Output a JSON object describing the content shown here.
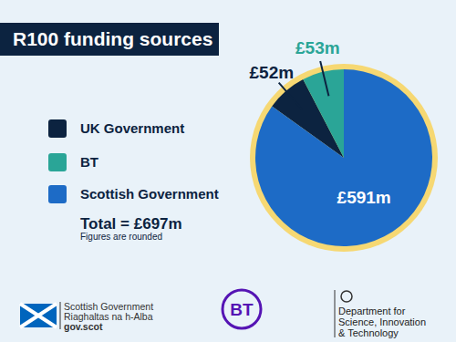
{
  "chart_data": {
    "type": "pie",
    "title": "R100 funding sources",
    "categories": [
      "UK Government",
      "BT",
      "Scottish Government"
    ],
    "values": [
      52,
      53,
      591
    ],
    "value_labels": [
      "£52m",
      "£53m",
      "£591m"
    ],
    "colors": [
      "#0c2340",
      "#2aa597",
      "#1d6bc6"
    ],
    "data_labels": true,
    "legend": "left",
    "annotations": [
      "Total = £697m",
      "Figures are rounded"
    ]
  },
  "footer": [
    [
      "Scottish Government",
      "Riaghaltas na h-Alba",
      "gov.scot"
    ],
    [
      "BT"
    ],
    [
      "Department for",
      "Science, Innovation",
      "& Technology"
    ]
  ]
}
